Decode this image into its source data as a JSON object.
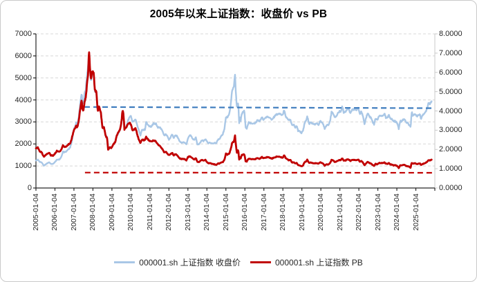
{
  "chart_data": {
    "type": "line",
    "title": "2005年以来上证指数：收盘价 vs PB",
    "grid": "horizontal-dashed",
    "x_domain": [
      2005,
      2026
    ],
    "x_tick_labels": [
      "2005-01-04",
      "2006-01-04",
      "2007-01-04",
      "2008-01-04",
      "2009-01-04",
      "2010-01-04",
      "2011-01-04",
      "2012-01-04",
      "2013-01-04",
      "2014-01-04",
      "2015-01-04",
      "2016-01-04",
      "2017-01-04",
      "2018-01-04",
      "2019-01-04",
      "2020-01-04",
      "2021-01-04",
      "2022-01-04",
      "2023-01-04",
      "2024-01-04",
      "2025-01-04"
    ],
    "left_axis": {
      "min": 0,
      "max": 7000,
      "step": 1000,
      "tick_labels": [
        "7000",
        "6000",
        "5000",
        "4000",
        "3000",
        "2000",
        "1000",
        "0"
      ]
    },
    "right_axis": {
      "min": 0,
      "max": 8,
      "step": 1,
      "tick_labels": [
        "8.0000",
        "7.0000",
        "6.0000",
        "5.0000",
        "4.0000",
        "3.0000",
        "2.0000",
        "1.0000",
        "0.0000"
      ]
    },
    "series": [
      {
        "name": "000001.sh 上证指数 收盘价",
        "axis": "left",
        "color": "#A9C7E6",
        "column": 1
      },
      {
        "name": "000001.sh 上证指数 PB",
        "axis": "right",
        "color": "#C00000",
        "column": 2
      }
    ],
    "reference_lines": [
      {
        "name": "close-level-dashed",
        "axis": "left",
        "color": "#3E7CBE",
        "t_start": 2007.55,
        "t_end": 2026,
        "value_start": 3680,
        "value_end": 3625,
        "style": "dashed"
      },
      {
        "name": "pb-level-dashed",
        "axis": "right",
        "color": "#C00000",
        "t_start": 2007.58,
        "t_end": 2026,
        "value_start": 0.8,
        "value_end": 0.79,
        "style": "dashed"
      }
    ],
    "points_columns": [
      "year_decimal",
      "close",
      "pb"
    ],
    "points": [
      [
        2005.0,
        1242,
        2.05
      ],
      [
        2005.1,
        1290,
        2.1
      ],
      [
        2005.2,
        1180,
        1.9
      ],
      [
        2005.3,
        1160,
        1.85
      ],
      [
        2005.42,
        1010,
        1.62
      ],
      [
        2005.5,
        1060,
        1.7
      ],
      [
        2005.6,
        1125,
        1.78
      ],
      [
        2005.7,
        1165,
        1.82
      ],
      [
        2005.78,
        1100,
        1.7
      ],
      [
        2005.9,
        1100,
        1.68
      ],
      [
        2006.0,
        1180,
        1.78
      ],
      [
        2006.1,
        1290,
        1.92
      ],
      [
        2006.25,
        1300,
        1.88
      ],
      [
        2006.35,
        1440,
        2.02
      ],
      [
        2006.42,
        1660,
        2.22
      ],
      [
        2006.5,
        1620,
        2.12
      ],
      [
        2006.6,
        1655,
        2.15
      ],
      [
        2006.7,
        1750,
        2.25
      ],
      [
        2006.8,
        1840,
        2.3
      ],
      [
        2006.88,
        2100,
        2.55
      ],
      [
        2007.0,
        2675,
        3.0
      ],
      [
        2007.06,
        2790,
        3.08
      ],
      [
        2007.12,
        2980,
        3.28
      ],
      [
        2007.17,
        2880,
        3.12
      ],
      [
        2007.25,
        3180,
        3.45
      ],
      [
        2007.33,
        3840,
        4.12
      ],
      [
        2007.41,
        4330,
        4.6
      ],
      [
        2007.44,
        3900,
        4.1
      ],
      [
        2007.5,
        3830,
        4.0
      ],
      [
        2007.55,
        4210,
        4.4
      ],
      [
        2007.62,
        4470,
        4.68
      ],
      [
        2007.7,
        5220,
        5.5
      ],
      [
        2007.75,
        5560,
        5.9
      ],
      [
        2007.79,
        6090,
        7.25
      ],
      [
        2007.85,
        5320,
        6.15
      ],
      [
        2007.9,
        4870,
        5.65
      ],
      [
        2007.97,
        5260,
        6.1
      ],
      [
        2008.04,
        5180,
        6.0
      ],
      [
        2008.1,
        4380,
        5.05
      ],
      [
        2008.18,
        4350,
        5.0
      ],
      [
        2008.25,
        3470,
        4.0
      ],
      [
        2008.33,
        3690,
        4.22
      ],
      [
        2008.42,
        3430,
        3.92
      ],
      [
        2008.5,
        2740,
        3.12
      ],
      [
        2008.58,
        2780,
        3.15
      ],
      [
        2008.67,
        2400,
        2.72
      ],
      [
        2008.75,
        2290,
        2.58
      ],
      [
        2008.8,
        1750,
        1.98
      ],
      [
        2008.88,
        1870,
        2.12
      ],
      [
        2008.97,
        1820,
        2.06
      ],
      [
        2009.08,
        1990,
        2.28
      ],
      [
        2009.17,
        2080,
        2.38
      ],
      [
        2009.25,
        2370,
        2.72
      ],
      [
        2009.33,
        2480,
        2.88
      ],
      [
        2009.42,
        2630,
        3.02
      ],
      [
        2009.5,
        2960,
        3.42
      ],
      [
        2009.55,
        3410,
        3.94
      ],
      [
        2009.59,
        3470,
        4.02
      ],
      [
        2009.66,
        2670,
        3.05
      ],
      [
        2009.75,
        2780,
        3.15
      ],
      [
        2009.83,
        3000,
        3.3
      ],
      [
        2009.92,
        3200,
        3.4
      ],
      [
        2010.0,
        3280,
        3.3
      ],
      [
        2010.08,
        2990,
        3.0
      ],
      [
        2010.17,
        3050,
        3.05
      ],
      [
        2010.25,
        3110,
        3.1
      ],
      [
        2010.33,
        2870,
        2.8
      ],
      [
        2010.42,
        2590,
        2.5
      ],
      [
        2010.5,
        2400,
        2.35
      ],
      [
        2010.58,
        2640,
        2.5
      ],
      [
        2010.67,
        2640,
        2.48
      ],
      [
        2010.75,
        2660,
        2.5
      ],
      [
        2010.8,
        3000,
        2.65
      ],
      [
        2010.83,
        2980,
        2.6
      ],
      [
        2010.92,
        2820,
        2.5
      ],
      [
        2011.0,
        2810,
        2.45
      ],
      [
        2011.08,
        2790,
        2.4
      ],
      [
        2011.17,
        2910,
        2.45
      ],
      [
        2011.25,
        2930,
        2.45
      ],
      [
        2011.33,
        2910,
        2.4
      ],
      [
        2011.42,
        2740,
        2.25
      ],
      [
        2011.5,
        2760,
        2.2
      ],
      [
        2011.58,
        2700,
        2.12
      ],
      [
        2011.67,
        2570,
        2.0
      ],
      [
        2011.75,
        2360,
        1.85
      ],
      [
        2011.83,
        2470,
        1.9
      ],
      [
        2011.92,
        2330,
        1.78
      ],
      [
        2012.0,
        2200,
        1.7
      ],
      [
        2012.08,
        2290,
        1.75
      ],
      [
        2012.17,
        2430,
        1.82
      ],
      [
        2012.25,
        2260,
        1.7
      ],
      [
        2012.33,
        2400,
        1.76
      ],
      [
        2012.42,
        2370,
        1.72
      ],
      [
        2012.5,
        2230,
        1.62
      ],
      [
        2012.58,
        2100,
        1.53
      ],
      [
        2012.67,
        2050,
        1.5
      ],
      [
        2012.75,
        2090,
        1.52
      ],
      [
        2012.83,
        2070,
        1.5
      ],
      [
        2012.92,
        1980,
        1.43
      ],
      [
        2013.0,
        2270,
        1.6
      ],
      [
        2013.08,
        2390,
        1.64
      ],
      [
        2013.17,
        2370,
        1.61
      ],
      [
        2013.25,
        2240,
        1.53
      ],
      [
        2013.33,
        2180,
        1.48
      ],
      [
        2013.42,
        2300,
        1.55
      ],
      [
        2013.5,
        1980,
        1.35
      ],
      [
        2013.58,
        1990,
        1.35
      ],
      [
        2013.67,
        2100,
        1.42
      ],
      [
        2013.75,
        2170,
        1.45
      ],
      [
        2013.83,
        2140,
        1.42
      ],
      [
        2013.92,
        2220,
        1.46
      ],
      [
        2014.0,
        2120,
        1.35
      ],
      [
        2014.08,
        2030,
        1.28
      ],
      [
        2014.17,
        2060,
        1.29
      ],
      [
        2014.25,
        2030,
        1.26
      ],
      [
        2014.33,
        2030,
        1.24
      ],
      [
        2014.42,
        2040,
        1.22
      ],
      [
        2014.5,
        2050,
        1.2
      ],
      [
        2014.58,
        2200,
        1.27
      ],
      [
        2014.67,
        2220,
        1.27
      ],
      [
        2014.75,
        2360,
        1.32
      ],
      [
        2014.83,
        2420,
        1.34
      ],
      [
        2014.92,
        2680,
        1.45
      ],
      [
        2015.0,
        3235,
        1.78
      ],
      [
        2015.08,
        3210,
        1.74
      ],
      [
        2015.17,
        3310,
        1.78
      ],
      [
        2015.25,
        3750,
        1.98
      ],
      [
        2015.33,
        4440,
        2.36
      ],
      [
        2015.42,
        4610,
        2.42
      ],
      [
        2015.48,
        5170,
        2.72
      ],
      [
        2015.53,
        4280,
        2.2
      ],
      [
        2015.58,
        3660,
        1.85
      ],
      [
        2015.65,
        3930,
        1.97
      ],
      [
        2015.7,
        2930,
        1.48
      ],
      [
        2015.73,
        3200,
        1.62
      ],
      [
        2015.78,
        3050,
        1.54
      ],
      [
        2015.83,
        3380,
        1.7
      ],
      [
        2015.9,
        3450,
        1.73
      ],
      [
        2015.97,
        3540,
        1.76
      ],
      [
        2016.04,
        2740,
        1.4
      ],
      [
        2016.1,
        2690,
        1.38
      ],
      [
        2016.2,
        3000,
        1.53
      ],
      [
        2016.3,
        2940,
        1.5
      ],
      [
        2016.4,
        2920,
        1.49
      ],
      [
        2016.5,
        2930,
        1.49
      ],
      [
        2016.58,
        2980,
        1.51
      ],
      [
        2016.67,
        3090,
        1.56
      ],
      [
        2016.75,
        3000,
        1.51
      ],
      [
        2016.83,
        3100,
        1.55
      ],
      [
        2016.9,
        3250,
        1.62
      ],
      [
        2016.97,
        3100,
        1.55
      ],
      [
        2017.08,
        3160,
        1.57
      ],
      [
        2017.17,
        3240,
        1.6
      ],
      [
        2017.25,
        3220,
        1.59
      ],
      [
        2017.33,
        3160,
        1.56
      ],
      [
        2017.42,
        3120,
        1.53
      ],
      [
        2017.5,
        3190,
        1.56
      ],
      [
        2017.58,
        3270,
        1.59
      ],
      [
        2017.67,
        3360,
        1.63
      ],
      [
        2017.75,
        3350,
        1.62
      ],
      [
        2017.83,
        3390,
        1.63
      ],
      [
        2017.92,
        3320,
        1.59
      ],
      [
        2018.0,
        3310,
        1.58
      ],
      [
        2018.07,
        3560,
        1.7
      ],
      [
        2018.15,
        3260,
        1.55
      ],
      [
        2018.23,
        3170,
        1.5
      ],
      [
        2018.3,
        3080,
        1.45
      ],
      [
        2018.4,
        3100,
        1.45
      ],
      [
        2018.48,
        2850,
        1.33
      ],
      [
        2018.57,
        2880,
        1.34
      ],
      [
        2018.65,
        2730,
        1.26
      ],
      [
        2018.73,
        2820,
        1.3
      ],
      [
        2018.8,
        2600,
        1.19
      ],
      [
        2018.88,
        2590,
        1.18
      ],
      [
        2018.97,
        2490,
        1.13
      ],
      [
        2019.06,
        2590,
        1.17
      ],
      [
        2019.14,
        2940,
        1.33
      ],
      [
        2019.24,
        3090,
        1.39
      ],
      [
        2019.28,
        3270,
        1.47
      ],
      [
        2019.38,
        2900,
        1.3
      ],
      [
        2019.46,
        2980,
        1.33
      ],
      [
        2019.55,
        2930,
        1.3
      ],
      [
        2019.63,
        2890,
        1.28
      ],
      [
        2019.72,
        2910,
        1.29
      ],
      [
        2019.8,
        2930,
        1.29
      ],
      [
        2019.88,
        2870,
        1.26
      ],
      [
        2019.97,
        3050,
        1.34
      ],
      [
        2020.05,
        2980,
        1.3
      ],
      [
        2020.13,
        2880,
        1.25
      ],
      [
        2020.2,
        2680,
        1.16
      ],
      [
        2020.3,
        2860,
        1.23
      ],
      [
        2020.38,
        2850,
        1.22
      ],
      [
        2020.47,
        2980,
        1.27
      ],
      [
        2020.54,
        3310,
        1.41
      ],
      [
        2020.56,
        3450,
        1.47
      ],
      [
        2020.63,
        3400,
        1.44
      ],
      [
        2020.72,
        3220,
        1.36
      ],
      [
        2020.8,
        3230,
        1.36
      ],
      [
        2020.88,
        3390,
        1.42
      ],
      [
        2020.97,
        3470,
        1.45
      ],
      [
        2021.05,
        3480,
        1.45
      ],
      [
        2021.13,
        3700,
        1.54
      ],
      [
        2021.2,
        3440,
        1.43
      ],
      [
        2021.3,
        3450,
        1.43
      ],
      [
        2021.38,
        3610,
        1.49
      ],
      [
        2021.47,
        3590,
        1.48
      ],
      [
        2021.55,
        3400,
        1.4
      ],
      [
        2021.63,
        3540,
        1.45
      ],
      [
        2021.72,
        3570,
        1.46
      ],
      [
        2021.8,
        3550,
        1.45
      ],
      [
        2021.88,
        3560,
        1.45
      ],
      [
        2021.97,
        3640,
        1.48
      ],
      [
        2022.05,
        3360,
        1.36
      ],
      [
        2022.13,
        3460,
        1.4
      ],
      [
        2022.22,
        3250,
        1.31
      ],
      [
        2022.3,
        2890,
        1.17
      ],
      [
        2022.38,
        3190,
        1.28
      ],
      [
        2022.47,
        3400,
        1.36
      ],
      [
        2022.55,
        3250,
        1.3
      ],
      [
        2022.63,
        3200,
        1.28
      ],
      [
        2022.72,
        3020,
        1.2
      ],
      [
        2022.8,
        2890,
        1.15
      ],
      [
        2022.88,
        3150,
        1.25
      ],
      [
        2022.97,
        3090,
        1.22
      ],
      [
        2023.05,
        3260,
        1.29
      ],
      [
        2023.13,
        3280,
        1.3
      ],
      [
        2023.22,
        3270,
        1.29
      ],
      [
        2023.3,
        3320,
        1.31
      ],
      [
        2023.35,
        3400,
        1.34
      ],
      [
        2023.42,
        3200,
        1.26
      ],
      [
        2023.5,
        3200,
        1.26
      ],
      [
        2023.58,
        3290,
        1.29
      ],
      [
        2023.67,
        3120,
        1.22
      ],
      [
        2023.75,
        3110,
        1.21
      ],
      [
        2023.83,
        3020,
        1.17
      ],
      [
        2023.92,
        3030,
        1.18
      ],
      [
        2024.0,
        2975,
        1.15
      ],
      [
        2024.08,
        2790,
        1.08
      ],
      [
        2024.1,
        2660,
        1.03
      ],
      [
        2024.17,
        3020,
        1.17
      ],
      [
        2024.25,
        3040,
        1.18
      ],
      [
        2024.33,
        3110,
        1.2
      ],
      [
        2024.42,
        3090,
        1.19
      ],
      [
        2024.5,
        2970,
        1.14
      ],
      [
        2024.58,
        2940,
        1.13
      ],
      [
        2024.67,
        2840,
        1.09
      ],
      [
        2024.73,
        2740,
        1.05
      ],
      [
        2024.75,
        3090,
        1.18
      ],
      [
        2024.77,
        3340,
        1.28
      ],
      [
        2024.79,
        3470,
        1.33
      ],
      [
        2024.83,
        3280,
        1.25
      ],
      [
        2024.88,
        3330,
        1.27
      ],
      [
        2024.97,
        3350,
        1.28
      ],
      [
        2025.05,
        3250,
        1.24
      ],
      [
        2025.13,
        3320,
        1.26
      ],
      [
        2025.22,
        3340,
        1.27
      ],
      [
        2025.27,
        3100,
        1.18
      ],
      [
        2025.33,
        3280,
        1.24
      ],
      [
        2025.42,
        3350,
        1.27
      ],
      [
        2025.5,
        3440,
        1.3
      ],
      [
        2025.58,
        3570,
        1.35
      ],
      [
        2025.67,
        3860,
        1.44
      ],
      [
        2025.72,
        3820,
        1.42
      ],
      [
        2025.78,
        3880,
        1.44
      ],
      [
        2025.83,
        3940,
        1.47
      ]
    ]
  },
  "legend": {
    "items": [
      {
        "label": "000001.sh 上证指数 收盘价",
        "color": "#A9C7E6"
      },
      {
        "label": "000001.sh 上证指数 PB",
        "color": "#C00000"
      }
    ]
  },
  "colors": {
    "close_line": "#A9C7E6",
    "pb_line": "#C00000",
    "close_dashed": "#3E7CBE",
    "pb_dashed": "#C00000",
    "gridline": "#D8D8D8",
    "axis": "#262626",
    "right_axis": "#C9C9C9",
    "text": "#262626",
    "frame_border": "#C9C9C9"
  }
}
